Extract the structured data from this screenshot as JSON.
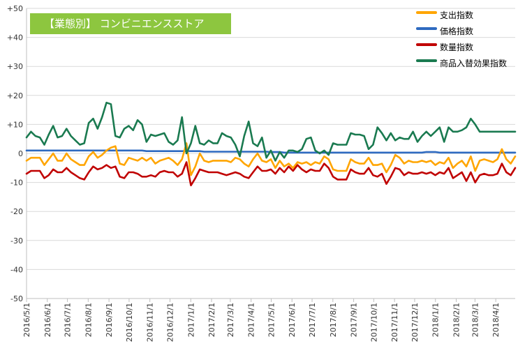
{
  "chart_data": {
    "type": "line",
    "title": "【業態別】 コンビニエンスストア",
    "xlabel": "",
    "ylabel": "",
    "ylim": [
      -50,
      50
    ],
    "y_ticks": [
      50,
      40,
      30,
      20,
      10,
      0,
      -10,
      -20,
      -30,
      -40,
      -50
    ],
    "y_tick_labels": [
      "+50",
      "+40",
      "+30",
      "+20",
      "+10",
      "0",
      "-10",
      "-20",
      "-30",
      "-40",
      "-50"
    ],
    "x_tick_labels": [
      "2016/5/1",
      "2016/6/1",
      "2016/7/1",
      "2016/8/1",
      "2016/9/1",
      "2016/10/1",
      "2016/11/1",
      "2016/12/1",
      "2017/1/1",
      "2017/2/1",
      "2017/3/1",
      "2017/4/1",
      "2017/5/1",
      "2017/6/1",
      "2017/7/1",
      "2017/8/1",
      "2017/9/1",
      "2017/10/1",
      "2017/11/1",
      "2017/12/1",
      "2018/1/1",
      "2018/2/1",
      "2018/3/1",
      "2018/4/1"
    ],
    "x_range": [
      "2016/5/1",
      "2018/4/30"
    ],
    "grid": true,
    "legend_position": "top-right",
    "series": [
      {
        "name": "支出指数",
        "color": "#ffa500",
        "values": [
          -2.5,
          -1.5,
          -1.5,
          -1.5,
          -4,
          -2,
          0,
          -2.5,
          -2.5,
          0,
          -2,
          -3,
          -4,
          -4,
          -1,
          0.5,
          -1.5,
          -0.5,
          1,
          2,
          2.5,
          -3.5,
          -4,
          -1.5,
          -2,
          -2.5,
          -1.5,
          -2.5,
          -1.5,
          -3.5,
          -2.5,
          -2,
          -1.5,
          -2.5,
          -4,
          -2,
          3.5,
          -7.5,
          -4.5,
          0,
          -2.5,
          -3,
          -2.5,
          -2.5,
          -2.5,
          -2.5,
          -3,
          -1.5,
          -2,
          -3.5,
          -4.5,
          -2,
          0,
          -2.5,
          -3,
          -2,
          -5,
          -2.5,
          -4.5,
          -3.5,
          -5,
          -3,
          -3.5,
          -3,
          -4,
          -3,
          -3.5,
          -1,
          -2,
          -5.5,
          -6,
          -6,
          -6,
          -2,
          -3,
          -3.5,
          -3.5,
          -1.5,
          -4,
          -4,
          -3.5,
          -6.5,
          -4,
          -0.5,
          -1.5,
          -3.5,
          -2.5,
          -3,
          -3,
          -2.5,
          -3,
          -2.5,
          -4,
          -3,
          -3.5,
          -1.5,
          -5,
          -3.5,
          -2.5,
          -4.5,
          -1,
          -6,
          -2.5,
          -2,
          -2.5,
          -3,
          -2,
          1.5,
          -2,
          -3.5,
          -1
        ]
      },
      {
        "name": "価格指数",
        "color": "#2e6ac0",
        "values": [
          1,
          1,
          1,
          1,
          1,
          1,
          1,
          1,
          1,
          1,
          1,
          1,
          1,
          1,
          1,
          1,
          1,
          1,
          1,
          1,
          1,
          1,
          1,
          1,
          1,
          1,
          1,
          0.8,
          0.8,
          0.8,
          0.8,
          0.8,
          0.8,
          0.8,
          0.8,
          0.8,
          0.8,
          0.8,
          0.8,
          0.8,
          0.6,
          0.6,
          0.6,
          0.6,
          0.6,
          0.6,
          0.6,
          0.6,
          0.6,
          0.6,
          0.6,
          0.6,
          0.6,
          0.6,
          0.6,
          0.5,
          0.5,
          0.5,
          0.3,
          0.3,
          0.3,
          0.3,
          0.3,
          0.3,
          0.3,
          0.3,
          0.3,
          0.3,
          0.3,
          0.3,
          0.3,
          0.3,
          0.3,
          0.3,
          0.3,
          0.3,
          0.3,
          0.3,
          0.3,
          0.3,
          0.3,
          0.3,
          0.3,
          0.3,
          0.3,
          0.3,
          0.3,
          0.3,
          0.3,
          0.3,
          0.5,
          0.5,
          0.5,
          0.3,
          0.3,
          0.3,
          0.3,
          0.3,
          0.3,
          0.3,
          0.3,
          0.3,
          0.3,
          0.3,
          0.3,
          0.3,
          0.3,
          0.3,
          0.3,
          0.3,
          0.3
        ]
      },
      {
        "name": "数量指数",
        "color": "#c00000",
        "values": [
          -7,
          -6,
          -6,
          -6,
          -8.5,
          -7.5,
          -5.5,
          -6.5,
          -6.5,
          -5,
          -6.5,
          -7.5,
          -8.5,
          -9,
          -6.5,
          -4.5,
          -5.5,
          -5,
          -4,
          -5,
          -4.5,
          -8,
          -8.5,
          -6.5,
          -6.5,
          -7,
          -8,
          -8,
          -7.5,
          -8,
          -6.5,
          -6,
          -6.5,
          -6.5,
          -8,
          -7,
          -3,
          -11,
          -8.5,
          -5.5,
          -6,
          -6.5,
          -6.5,
          -6.5,
          -7,
          -7.5,
          -7,
          -6.5,
          -7,
          -8,
          -8.5,
          -6.5,
          -4.5,
          -6,
          -6,
          -5.5,
          -7,
          -5,
          -6.5,
          -4.5,
          -6,
          -4,
          -5.5,
          -6.5,
          -5.5,
          -6,
          -6,
          -3.5,
          -5,
          -8,
          -9,
          -9,
          -9,
          -5.5,
          -6.5,
          -7,
          -7,
          -5,
          -7.5,
          -8,
          -7,
          -10.5,
          -8,
          -5,
          -5.5,
          -7.5,
          -6.5,
          -7,
          -7,
          -6.5,
          -7,
          -6.5,
          -7.5,
          -6.5,
          -7,
          -5,
          -8.5,
          -7.5,
          -6.5,
          -9.5,
          -6.5,
          -10,
          -7.5,
          -7,
          -7.5,
          -7.5,
          -7,
          -3.5,
          -6.5,
          -7.5,
          -5
        ]
      },
      {
        "name": "商品入替効果指数",
        "color": "#1a7a50",
        "values": [
          5.5,
          7.5,
          6,
          5.5,
          3,
          6.5,
          9.5,
          5.5,
          6,
          8.5,
          6,
          4.5,
          3,
          3.5,
          10.5,
          12,
          8.5,
          12.5,
          17.5,
          17,
          6,
          5.5,
          8.5,
          9.5,
          8,
          11.5,
          10,
          4,
          6.5,
          6,
          6.5,
          7,
          4,
          3,
          4.5,
          12.5,
          0,
          3.5,
          9.5,
          3.5,
          3,
          4.5,
          3.5,
          3.5,
          7,
          6,
          5.5,
          3,
          -1,
          6,
          11,
          3.5,
          2.5,
          5.5,
          -1.5,
          1,
          -2.5,
          0.5,
          -1.5,
          1,
          1,
          0.5,
          1.5,
          5,
          5.5,
          1,
          0,
          1,
          -0.5,
          3.5,
          3,
          3,
          3,
          7,
          6.5,
          6.5,
          6,
          1.5,
          3,
          9,
          7,
          4.5,
          7,
          4.5,
          5.5,
          5,
          5,
          7.5,
          4,
          6,
          7.5,
          6,
          7.5,
          9,
          4,
          9,
          7.5,
          7.5,
          8,
          9,
          12,
          10,
          7.5,
          7.5,
          7.5,
          7.5,
          7.5,
          7.5,
          7.5,
          7.5,
          7.5
        ]
      }
    ]
  }
}
